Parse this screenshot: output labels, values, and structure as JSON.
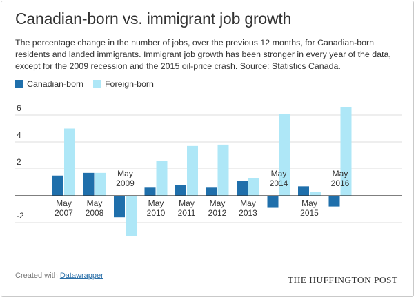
{
  "title": "Canadian-born vs. immigrant job growth",
  "subtitle": "The percentage change in the number of jobs, over the previous 12 months, for Canadian-born residents and landed immigrants. Immigrant job growth has been stronger in every year of the data, except for the 2009 recession and the 2015 oil-price crash. Source: Statistics Canada.",
  "footer": {
    "created_with": "Created with",
    "tool_link": "Datawrapper",
    "brand": "THE HUFFINGTON POST"
  },
  "colors": {
    "canadian": "#1f6fab",
    "foreign": "#aee7f7",
    "grid": "#dddddd",
    "zero": "#333333",
    "text": "#333333"
  },
  "chart_data": {
    "type": "bar",
    "categories": [
      [
        "May",
        "2007"
      ],
      [
        "May",
        "2008"
      ],
      [
        "May",
        "2009"
      ],
      [
        "May",
        "2010"
      ],
      [
        "May",
        "2011"
      ],
      [
        "May",
        "2012"
      ],
      [
        "May",
        "2013"
      ],
      [
        "May",
        "2014"
      ],
      [
        "May",
        "2015"
      ],
      [
        "May",
        "2016"
      ]
    ],
    "series": [
      {
        "name": "Canadian-born",
        "values": [
          1.5,
          1.7,
          -1.6,
          0.6,
          0.8,
          0.6,
          1.1,
          -0.9,
          0.7,
          -0.8
        ]
      },
      {
        "name": "Foreign-born",
        "values": [
          5.0,
          1.7,
          -3.0,
          2.6,
          3.7,
          3.8,
          1.3,
          6.1,
          0.3,
          6.6
        ]
      }
    ],
    "y_ticks": [
      6,
      4,
      2,
      -2
    ],
    "ylim": [
      -3.2,
      6.9
    ],
    "grid": true,
    "legend_position": "top-left"
  }
}
